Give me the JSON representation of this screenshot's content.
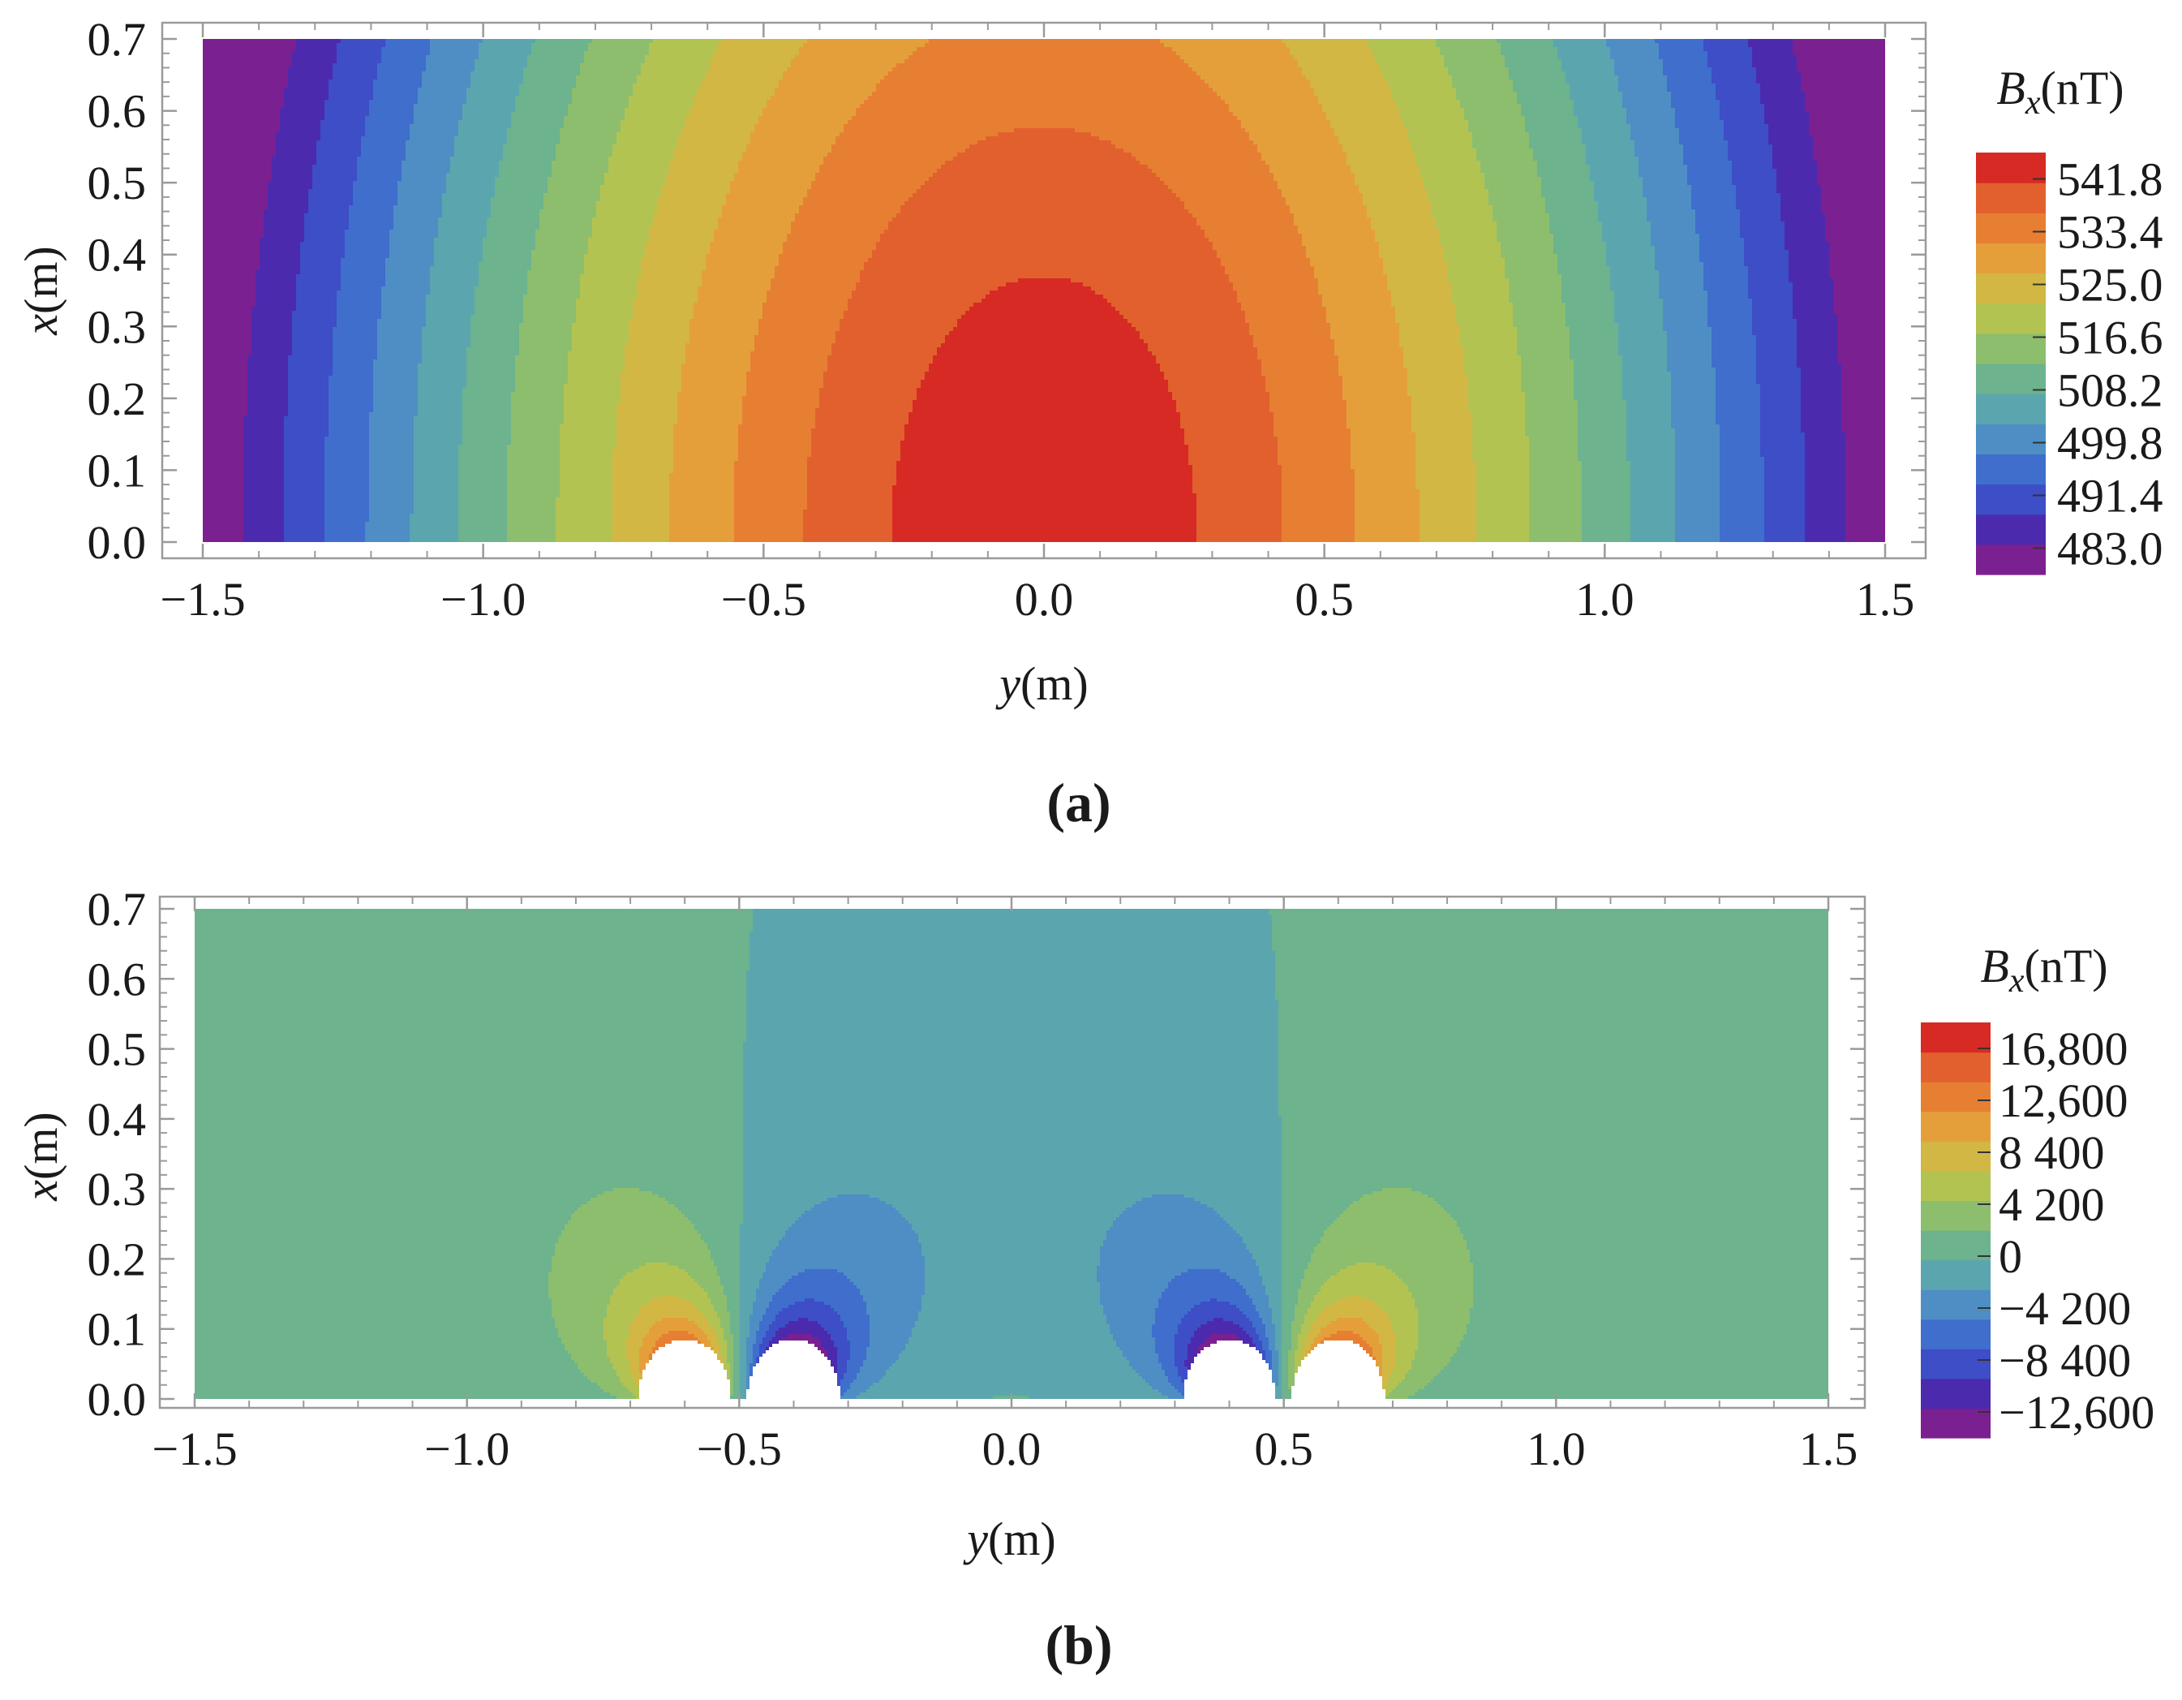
{
  "chart_data": [
    {
      "panel_id": "a",
      "type": "heatmap",
      "subtype": "filled-contour",
      "panel_label": "(a)",
      "xlabel": "y(m)",
      "ylabel": "x(m)",
      "xlim": [
        -1.5,
        1.5
      ],
      "ylim": [
        0.0,
        0.7
      ],
      "x_ticks": [
        "−1.5",
        "−1.0",
        "−0.5",
        "0.0",
        "0.5",
        "1.0",
        "1.5"
      ],
      "y_ticks": [
        "0.0",
        "0.1",
        "0.2",
        "0.3",
        "0.4",
        "0.5",
        "0.6",
        "0.7"
      ],
      "colorbar": {
        "title_main": "B",
        "title_sub": "x",
        "title_unit": "(nT)",
        "range": [
          478.8,
          546.0
        ],
        "tick_values": [
          483.0,
          491.4,
          499.8,
          508.2,
          516.6,
          525.0,
          533.4,
          541.8
        ],
        "tick_labels": [
          "483.0",
          "491.4",
          "499.8",
          "508.2",
          "516.6",
          "525.0",
          "533.4",
          "541.8"
        ],
        "colors": [
          "#7B2090",
          "#4B2AAE",
          "#3D4EC6",
          "#3F6ECD",
          "#4E8EC5",
          "#5BA6AE",
          "#6CB38E",
          "#8DBE6E",
          "#B3C352",
          "#D2B744",
          "#E49F3B",
          "#E77F32",
          "#E2602E",
          "#D72A24"
        ]
      },
      "field_model": {
        "description": "Bx across the plane, peak at y=0, x=0",
        "peak": 546.0,
        "min_at_edges": 478.8
      }
    },
    {
      "panel_id": "b",
      "type": "heatmap",
      "subtype": "filled-contour",
      "panel_label": "(b)",
      "xlabel": "y(m)",
      "ylabel": "x(m)",
      "xlim": [
        -1.5,
        1.5
      ],
      "ylim": [
        0.0,
        0.7
      ],
      "x_ticks": [
        "−1.5",
        "−1.0",
        "−0.5",
        "0.0",
        "0.5",
        "1.0",
        "1.5"
      ],
      "y_ticks": [
        "0.0",
        "0.1",
        "0.2",
        "0.3",
        "0.4",
        "0.5",
        "0.6",
        "0.7"
      ],
      "colorbar": {
        "title_main": "B",
        "title_sub": "x",
        "title_unit": "(nT)",
        "range": [
          -14700,
          18900
        ],
        "tick_values": [
          16800,
          12600,
          8400,
          4200,
          0,
          -4200,
          -8400,
          -12600
        ],
        "tick_labels": [
          "16,800",
          "12,600",
          "8 400",
          "4 200",
          "0",
          "−4 200",
          "−8 400",
          "−12,600"
        ],
        "colors": [
          "#7B2090",
          "#4B2AAE",
          "#3D4EC6",
          "#3F6ECD",
          "#4E8EC5",
          "#5BA6AE",
          "#6CB38E",
          "#8DBE6E",
          "#B3C352",
          "#D2B744",
          "#E49F3B",
          "#E77F32",
          "#E2602E",
          "#D72A24"
        ]
      },
      "conductors": [
        {
          "y": -0.6,
          "x": 0.0,
          "radius": 0.085
        },
        {
          "y": -0.4,
          "x": 0.0,
          "radius": 0.085
        },
        {
          "y": 0.4,
          "x": 0.0,
          "radius": 0.085
        },
        {
          "y": 0.6,
          "x": 0.0,
          "radius": 0.085
        }
      ],
      "field_model": {
        "description": "Bx from pairs of line currents near y=±0.5",
        "current_signs": [
          1,
          -1,
          -1,
          1
        ]
      }
    }
  ]
}
